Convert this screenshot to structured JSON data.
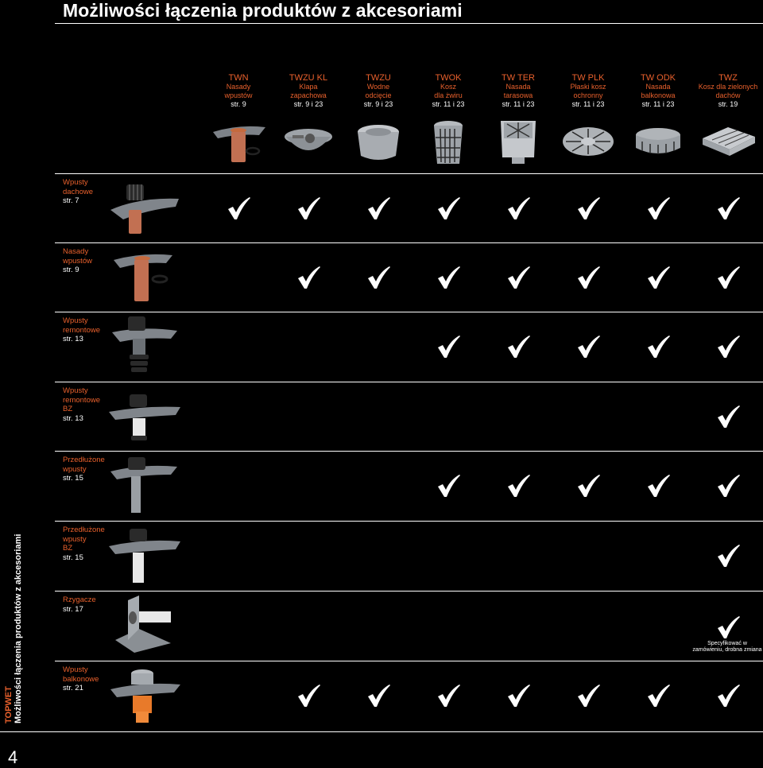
{
  "title": "Możliwości łączenia produktów z akcesoriami",
  "columns": [
    {
      "code": "TWN",
      "lines": [
        "Nasady",
        "wpustów"
      ],
      "ref": "str. 9",
      "icon": "funnel-pipe-product"
    },
    {
      "code": "TWZU KL",
      "lines": [
        "Klapa",
        "zapachowa"
      ],
      "ref": "str. 9 i 23",
      "icon": "flap-valve-product"
    },
    {
      "code": "TWZU",
      "lines": [
        "Wodne",
        "odcięcie"
      ],
      "ref": "str. 9 i 23",
      "icon": "water-seal-product"
    },
    {
      "code": "TWOK",
      "lines": [
        "Kosz",
        "dla żwiru"
      ],
      "ref": "str. 11 i 23",
      "icon": "gravel-basket-product"
    },
    {
      "code": "TW TER",
      "lines": [
        "Nasada",
        "tarasowa"
      ],
      "ref": "str. 11 i 23",
      "icon": "terrace-extension-product"
    },
    {
      "code": "TW PLK",
      "lines": [
        "Płaski kosz",
        "ochronny"
      ],
      "ref": "str. 11 i 23",
      "icon": "flat-guard-product"
    },
    {
      "code": "TW ODK",
      "lines": [
        "Nasada",
        "balkonowa"
      ],
      "ref": "str. 11 i 23",
      "icon": "balcony-extension-product"
    },
    {
      "code": "TWZ",
      "lines": [
        "Kosz dla zielonych",
        "dachów"
      ],
      "ref": "str. 19",
      "icon": "green-roof-basket-product"
    }
  ],
  "rows": [
    {
      "lines": [
        "Wpusty",
        "dachowe"
      ],
      "ref": "str. 7",
      "checks": [
        1,
        1,
        1,
        1,
        1,
        1,
        1,
        1
      ]
    },
    {
      "lines": [
        "Nasady",
        "wpustów"
      ],
      "ref": "str. 9",
      "checks": [
        0,
        1,
        1,
        1,
        1,
        1,
        1,
        1
      ]
    },
    {
      "lines": [
        "Wpusty",
        "remontowe"
      ],
      "ref": "str. 13",
      "checks": [
        0,
        0,
        0,
        1,
        1,
        1,
        1,
        1
      ]
    },
    {
      "lines": [
        "Wpusty",
        "remontowe",
        "BZ"
      ],
      "ref": "str. 13",
      "checks": [
        0,
        0,
        0,
        0,
        0,
        0,
        0,
        1
      ]
    },
    {
      "lines": [
        "Przedłużone",
        "wpusty"
      ],
      "ref": "str. 15",
      "checks": [
        0,
        0,
        0,
        1,
        1,
        1,
        1,
        1
      ]
    },
    {
      "lines": [
        "Przedłużone",
        "wpusty",
        "BZ"
      ],
      "ref": "str. 15",
      "checks": [
        0,
        0,
        0,
        0,
        0,
        0,
        0,
        1
      ]
    },
    {
      "lines": [
        "Rzygacze"
      ],
      "ref": "str. 17",
      "checks": [
        0,
        0,
        0,
        0,
        0,
        0,
        0,
        1
      ]
    },
    {
      "lines": [
        "Wpusty",
        "balkonowe"
      ],
      "ref": "str. 21",
      "checks": [
        0,
        1,
        1,
        1,
        1,
        1,
        1,
        1
      ]
    }
  ],
  "note": "Specyfikować w zamówieniu, drobna zmiana",
  "side_brand": "TOPWET",
  "side_text": "Możliwości łączenia produktów z akcesoriami",
  "page_number": "4",
  "colors": {
    "accent": "#e8602c",
    "background": "#000000",
    "text": "#ffffff"
  }
}
